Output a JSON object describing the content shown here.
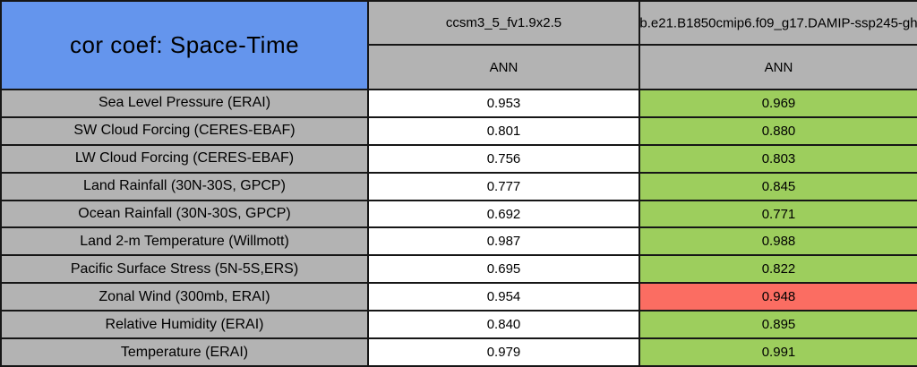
{
  "chart_data": {
    "type": "table",
    "title": "cor coef: Space-Time",
    "columns": [
      {
        "model": "ccsm3_5_fv1.9x2.5",
        "season": "ANN"
      },
      {
        "model": "b.e21.B1850cmip6.f09_g17.DAMIP-ssp245-gh",
        "season": "ANN"
      }
    ],
    "rows": [
      {
        "label": "Sea Level Pressure (ERAI)",
        "values": [
          "0.953",
          "0.969"
        ],
        "highlight": "green"
      },
      {
        "label": "SW Cloud Forcing (CERES-EBAF)",
        "values": [
          "0.801",
          "0.880"
        ],
        "highlight": "green"
      },
      {
        "label": "LW Cloud Forcing (CERES-EBAF)",
        "values": [
          "0.756",
          "0.803"
        ],
        "highlight": "green"
      },
      {
        "label": "Land Rainfall (30N-30S, GPCP)",
        "values": [
          "0.777",
          "0.845"
        ],
        "highlight": "green"
      },
      {
        "label": "Ocean Rainfall (30N-30S, GPCP)",
        "values": [
          "0.692",
          "0.771"
        ],
        "highlight": "green"
      },
      {
        "label": "Land 2-m Temperature (Willmott)",
        "values": [
          "0.987",
          "0.988"
        ],
        "highlight": "green"
      },
      {
        "label": "Pacific Surface Stress (5N-5S,ERS)",
        "values": [
          "0.695",
          "0.822"
        ],
        "highlight": "green"
      },
      {
        "label": "Zonal Wind (300mb, ERAI)",
        "values": [
          "0.954",
          "0.948"
        ],
        "highlight": "red"
      },
      {
        "label": "Relative Humidity (ERAI)",
        "values": [
          "0.840",
          "0.895"
        ],
        "highlight": "green"
      },
      {
        "label": "Temperature (ERAI)",
        "values": [
          "0.979",
          "0.991"
        ],
        "highlight": "green"
      }
    ],
    "colors": {
      "title_blue": "#6495ED",
      "header_gray": "#B3B3B3",
      "better_green": "#9DCE5D",
      "worse_red": "#FB6D62",
      "border": "#161616",
      "value_white": "#FFFFFF"
    }
  }
}
